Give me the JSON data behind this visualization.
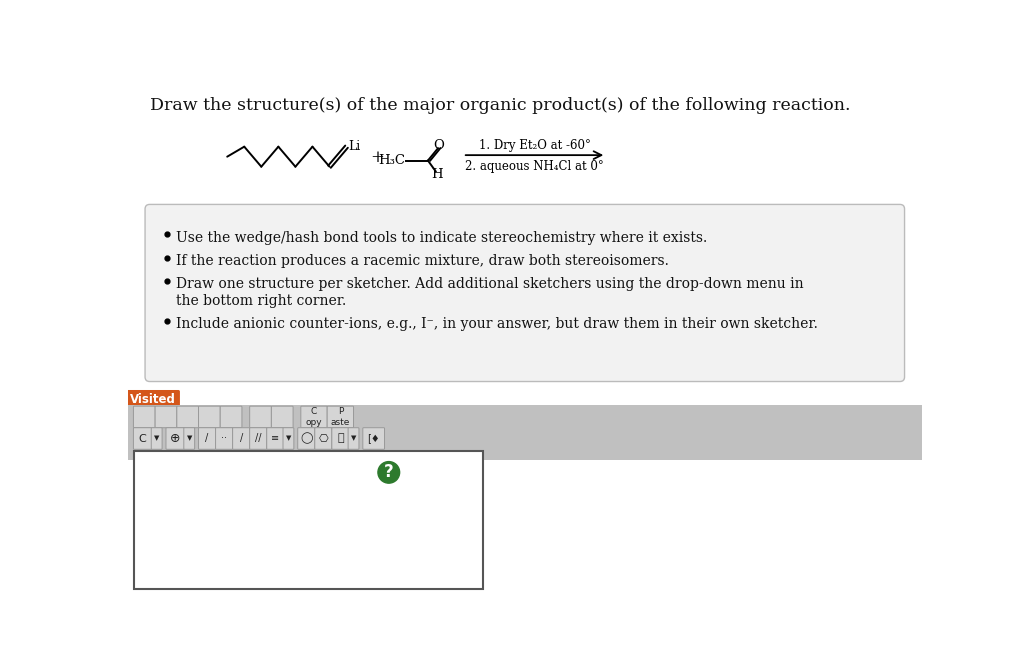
{
  "title": "Draw the structure(s) of the major organic product(s) of the following reaction.",
  "title_fontsize": 12.5,
  "background_color": "#f0f0f0",
  "bullet_box_color": "#f5f5f5",
  "bullet_points": [
    "Use the wedge/hash bond tools to indicate stereochemistry where it exists.",
    "If the reaction produces a racemic mixture, draw both stereoisomers.",
    "Draw one structure per sketcher. Add additional sketchers using the drop-down menu in\nthe bottom right corner.",
    "Include anionic counter-ions, e.g., I⁻, in your answer, but draw them in their own sketcher."
  ],
  "conditions_line1": "1. Dry Et₂O at -60°",
  "conditions_line2": "2. aqueous NH₄Cl at 0°",
  "visited_label": "Visited",
  "visited_bg": "#d4561a",
  "toolbar_bg": "#c8c8c8",
  "sketcher_bg": "#ffffff",
  "question_mark_color": "#2d7a2d",
  "arrow_color": "#000000",
  "page_bg": "#ffffff"
}
